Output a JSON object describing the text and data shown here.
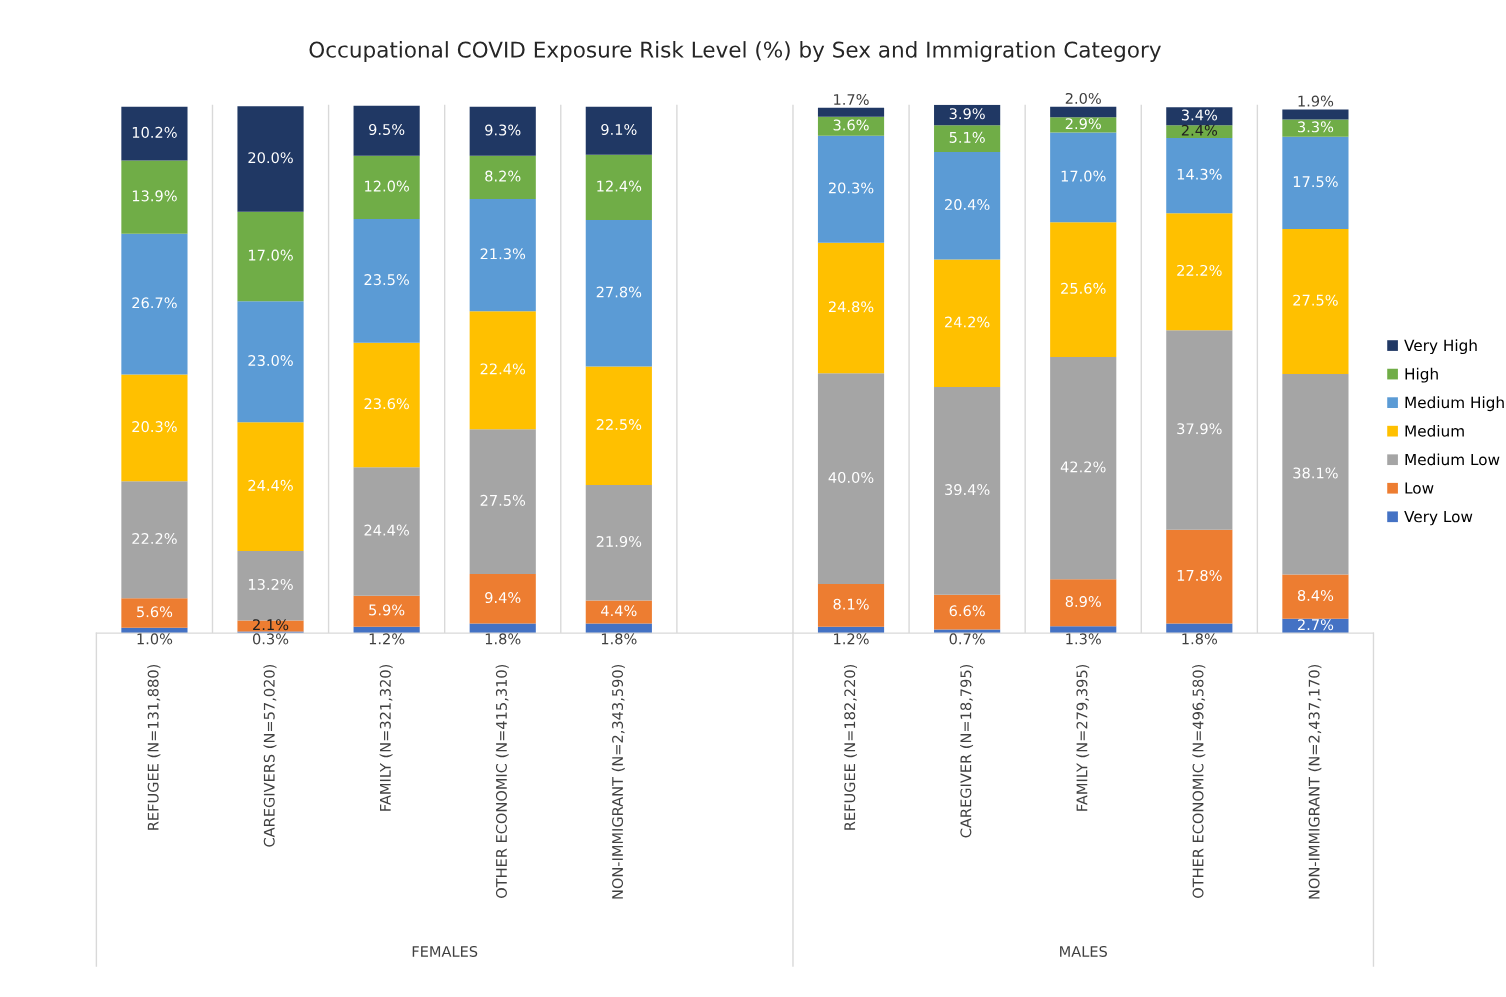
{
  "chart_data": {
    "type": "bar",
    "stacked": true,
    "grid": "x",
    "legend": "right",
    "title": "Occupational COVID Exposure Risk Level (%) by Sex and Immigration Category",
    "categories": [
      "REFUGEE (N=131,880)",
      "CAREGIVERS (N=57,020)",
      "FAMILY (N=321,320)",
      "OTHER ECONOMIC (N=415,310)",
      "NON-IMMIGRANT (N=2,343,590)",
      null,
      "REFUGEE (N=182,220)",
      "CAREGIVER (N=18,795)",
      "FAMILY (N=279,395)",
      "OTHER ECONOMIC (N=496,580)",
      "NON-IMMIGRANT (N=2,437,170)"
    ],
    "annotations": [
      "FEMALES",
      "MALES"
    ],
    "series": [
      {
        "name": "Very Low",
        "color": "#4472c4",
        "values": [
          1.0,
          0.3,
          1.2,
          1.8,
          1.8,
          null,
          1.2,
          0.7,
          1.3,
          1.8,
          2.7
        ],
        "value_labels": [
          "1.0%",
          "0.3%",
          "1.2%",
          "1.8%",
          "1.8%",
          null,
          "1.2%",
          "0.7%",
          "1.3%",
          "1.8%",
          "2.7%"
        ]
      },
      {
        "name": "Low",
        "color": "#ed7d31",
        "values": [
          5.6,
          2.1,
          5.9,
          9.4,
          4.4,
          null,
          8.1,
          6.6,
          8.9,
          17.8,
          8.4
        ],
        "value_labels": [
          "5.6%",
          "2.1%",
          "5.9%",
          "9.4%",
          "4.4%",
          null,
          "8.1%",
          "6.6%",
          "8.9%",
          "17.8%",
          "8.4%"
        ]
      },
      {
        "name": "Medium Low",
        "color": "#a5a5a5",
        "values": [
          22.2,
          13.2,
          24.4,
          27.5,
          21.9,
          null,
          40.0,
          39.4,
          42.2,
          37.9,
          38.1
        ],
        "value_labels": [
          "22.2%",
          "13.2%",
          "24.4%",
          "27.5%",
          "21.9%",
          null,
          "40.0%",
          "39.4%",
          "42.2%",
          "37.9%",
          "38.1%"
        ]
      },
      {
        "name": "Medium",
        "color": "#ffc000",
        "values": [
          20.3,
          24.4,
          23.6,
          22.4,
          22.5,
          null,
          24.8,
          24.2,
          25.6,
          22.2,
          27.5
        ],
        "value_labels": [
          "20.3%",
          "24.4%",
          "23.6%",
          "22.4%",
          "22.5%",
          null,
          "24.8%",
          "24.2%",
          "25.6%",
          "22.2%",
          "27.5%"
        ]
      },
      {
        "name": "Medium High",
        "color": "#5b9bd5",
        "values": [
          26.7,
          23.0,
          23.5,
          21.3,
          27.8,
          null,
          20.3,
          20.4,
          17.0,
          14.3,
          17.5
        ],
        "value_labels": [
          "26.7%",
          "23.0%",
          "23.5%",
          "21.3%",
          "27.8%",
          null,
          "20.3%",
          "20.4%",
          "17.0%",
          "14.3%",
          "17.5%"
        ]
      },
      {
        "name": "High",
        "color": "#70ad47",
        "values": [
          13.9,
          17.0,
          12.0,
          8.2,
          12.4,
          null,
          3.6,
          5.1,
          2.9,
          2.4,
          3.3
        ],
        "value_labels": [
          "13.9%",
          "17.0%",
          "12.0%",
          "8.2%",
          "12.4%",
          null,
          "3.6%",
          "5.1%",
          "2.9%",
          "2.4%",
          "3.3%"
        ]
      },
      {
        "name": "Very High",
        "color": "#203864",
        "values": [
          10.2,
          20.0,
          9.5,
          9.3,
          9.1,
          null,
          1.7,
          3.9,
          2.0,
          3.4,
          1.9
        ],
        "value_labels": [
          "10.2%",
          "20.0%",
          "9.5%",
          "9.3%",
          "9.1%",
          null,
          "1.7%",
          "3.9%",
          "2.0%",
          "3.4%",
          "1.9%"
        ]
      }
    ]
  }
}
